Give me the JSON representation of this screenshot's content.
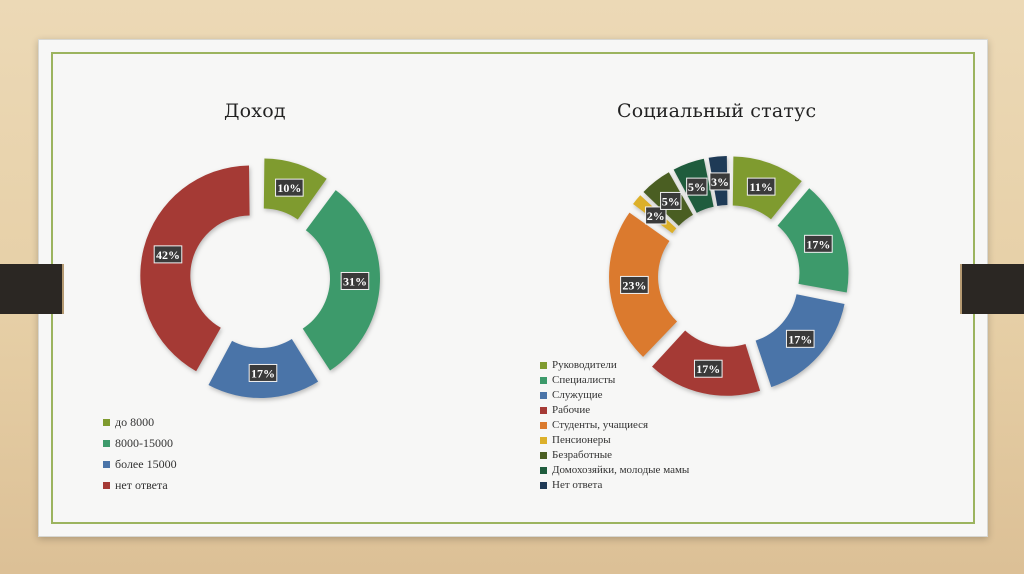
{
  "chart_data": [
    {
      "type": "pie",
      "title": "Доход",
      "categories": [
        "до 8000",
        "8000-15000",
        "более 15000",
        "нет ответа"
      ],
      "values": [
        10,
        31,
        17,
        42
      ],
      "data_labels": [
        "10%",
        "31%",
        "17%",
        "42%"
      ],
      "colors": [
        "#7f9b2f",
        "#3d9a6b",
        "#4a74a8",
        "#a53a35"
      ],
      "legend": "bottom-left"
    },
    {
      "type": "pie",
      "title": "Социальный статус",
      "categories": [
        "Руководители",
        "Специалисты",
        "Служущие",
        "Рабочие",
        "Студенты, учащиеся",
        "Пенсионеры",
        "Безработные",
        "Домохозяйки, молодые мамы",
        "Нет ответа"
      ],
      "values": [
        11,
        17,
        17,
        17,
        23,
        2,
        5,
        5,
        3
      ],
      "data_labels": [
        "11%",
        "17%",
        "17%",
        "17%",
        "23%",
        "2%",
        "5%",
        "5%",
        "3%"
      ],
      "colors": [
        "#7f9b2f",
        "#3d9a6b",
        "#4a74a8",
        "#a53a35",
        "#db7a2e",
        "#dcb02a",
        "#4a5e22",
        "#1f5c3d",
        "#1e3a56"
      ],
      "legend": "bottom-left"
    }
  ]
}
